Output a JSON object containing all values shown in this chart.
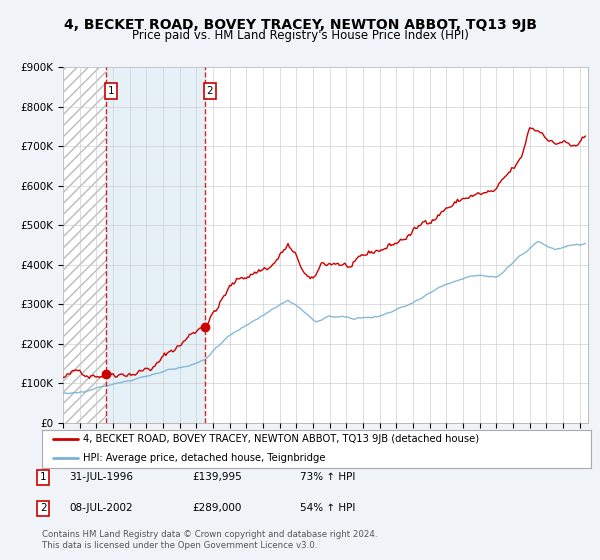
{
  "title": "4, BECKET ROAD, BOVEY TRACEY, NEWTON ABBOT, TQ13 9JB",
  "subtitle": "Price paid vs. HM Land Registry's House Price Index (HPI)",
  "ylim": [
    0,
    900000
  ],
  "yticks": [
    0,
    100000,
    200000,
    300000,
    400000,
    500000,
    600000,
    700000,
    800000,
    900000
  ],
  "ytick_labels": [
    "£0",
    "£100K",
    "£200K",
    "£300K",
    "£400K",
    "£500K",
    "£600K",
    "£700K",
    "£800K",
    "£900K"
  ],
  "xlim_start": 1994,
  "xlim_end": 2025.5,
  "sale1_date": 1996.58,
  "sale1_price": 139995,
  "sale2_date": 2002.52,
  "sale2_price": 289000,
  "hpi_color": "#7ab3d4",
  "price_color": "#cc0000",
  "dashed_line_color": "#cc0000",
  "hatch_color": "#c8c8c8",
  "shade_color": "#daeaf5",
  "background_color": "#f0f4f8",
  "plot_bg_color": "#ffffff",
  "grid_color": "#cccccc",
  "legend_text1": "4, BECKET ROAD, BOVEY TRACEY, NEWTON ABBOT, TQ13 9JB (detached house)",
  "legend_text2": "HPI: Average price, detached house, Teignbridge",
  "footer1": "Contains HM Land Registry data © Crown copyright and database right 2024.",
  "footer2": "This data is licensed under the Open Government Licence v3.0.",
  "table_rows": [
    {
      "num": "1",
      "date": "31-JUL-1996",
      "price": "£139,995",
      "change": "73% ↑ HPI"
    },
    {
      "num": "2",
      "date": "08-JUL-2002",
      "price": "£289,000",
      "change": "54% ↑ HPI"
    }
  ]
}
